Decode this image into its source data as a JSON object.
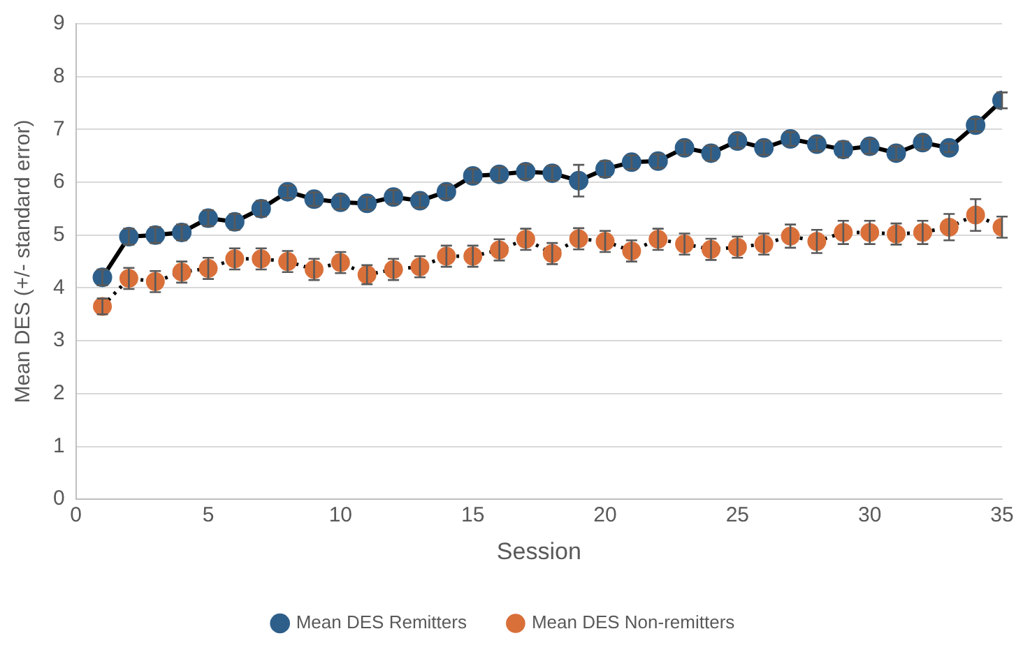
{
  "chart_data": {
    "type": "line",
    "xlabel": "Session",
    "ylabel": "Mean DES (+/- standard error)",
    "x": [
      1,
      2,
      3,
      4,
      5,
      6,
      7,
      8,
      9,
      10,
      11,
      12,
      13,
      14,
      15,
      16,
      17,
      18,
      19,
      20,
      21,
      22,
      23,
      24,
      25,
      26,
      27,
      28,
      29,
      30,
      31,
      32,
      33,
      34,
      35
    ],
    "series": [
      {
        "name": "Mean DES Remitters",
        "color": "#2e5f8a",
        "line_style": "solid",
        "values": [
          4.2,
          4.97,
          5.0,
          5.05,
          5.32,
          5.25,
          5.5,
          5.82,
          5.68,
          5.62,
          5.6,
          5.72,
          5.65,
          5.82,
          6.12,
          6.15,
          6.2,
          6.17,
          6.03,
          6.25,
          6.38,
          6.4,
          6.65,
          6.55,
          6.78,
          6.65,
          6.82,
          6.72,
          6.62,
          6.68,
          6.55,
          6.75,
          6.65,
          7.08,
          7.55
        ],
        "errors": [
          0.15,
          0.15,
          0.15,
          0.15,
          0.15,
          0.15,
          0.15,
          0.12,
          0.13,
          0.13,
          0.12,
          0.13,
          0.13,
          0.13,
          0.13,
          0.13,
          0.14,
          0.14,
          0.3,
          0.15,
          0.13,
          0.13,
          0.13,
          0.14,
          0.13,
          0.13,
          0.13,
          0.13,
          0.15,
          0.14,
          0.13,
          0.13,
          0.08,
          0.12,
          0.15
        ]
      },
      {
        "name": "Mean DES Non-remitters",
        "color": "#d9703a",
        "line_style": "dotted",
        "values": [
          3.65,
          4.18,
          4.12,
          4.3,
          4.37,
          4.55,
          4.55,
          4.5,
          4.35,
          4.48,
          4.25,
          4.35,
          4.4,
          4.6,
          4.6,
          4.72,
          4.92,
          4.65,
          4.93,
          4.88,
          4.7,
          4.92,
          4.83,
          4.73,
          4.77,
          4.83,
          4.98,
          4.88,
          5.05,
          5.05,
          5.02,
          5.05,
          5.15,
          5.38,
          5.15
        ],
        "errors": [
          0.15,
          0.2,
          0.2,
          0.2,
          0.2,
          0.2,
          0.2,
          0.2,
          0.2,
          0.2,
          0.18,
          0.2,
          0.2,
          0.2,
          0.2,
          0.2,
          0.2,
          0.2,
          0.2,
          0.2,
          0.2,
          0.2,
          0.2,
          0.2,
          0.2,
          0.2,
          0.22,
          0.22,
          0.22,
          0.22,
          0.2,
          0.22,
          0.25,
          0.3,
          0.2
        ]
      }
    ],
    "xlim": [
      0,
      35
    ],
    "xticks": [
      0,
      5,
      10,
      15,
      20,
      25,
      30,
      35
    ],
    "ylim": [
      0,
      9
    ],
    "yticks": [
      0,
      1,
      2,
      3,
      4,
      5,
      6,
      7,
      8,
      9
    ],
    "grid": "y",
    "legend": "bottom",
    "marker": "circle"
  }
}
